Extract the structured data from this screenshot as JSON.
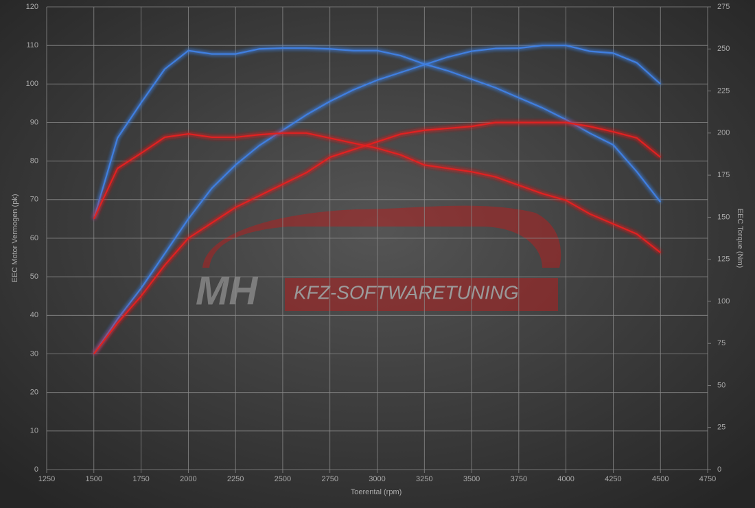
{
  "chart_data": {
    "type": "line",
    "xlabel": "Toerental (rpm)",
    "ylabel": "EEC Motor Vermogen (pk)",
    "y2label": "EEC Torque (Nm)",
    "annotations": [
      "MH",
      "KFZ-SOFTWARETUNING"
    ],
    "x": [
      1500,
      1625,
      1750,
      1875,
      2000,
      2125,
      2250,
      2375,
      2500,
      2625,
      2750,
      2875,
      3000,
      3125,
      3250,
      3375,
      3500,
      3625,
      3750,
      3875,
      4000,
      4125,
      4250,
      4375,
      4500
    ],
    "series": [
      {
        "color": "#3f7fe0",
        "values": [
          30,
          39,
          47,
          56,
          65,
          73,
          79,
          84,
          88,
          92,
          95.5,
          98.5,
          101,
          103,
          105,
          107,
          108.5,
          109.2,
          109.3,
          110,
          110,
          108.5,
          108,
          105.5,
          100
        ]
      },
      {
        "color": "#3f7fe0",
        "axis": "y2",
        "values": [
          149,
          197,
          218,
          238,
          249,
          247,
          247,
          250,
          250.5,
          250.5,
          250,
          249,
          249,
          246,
          241,
          237,
          232,
          227,
          221,
          215,
          208,
          200,
          193,
          177,
          159
        ]
      },
      {
        "color": "#e02020",
        "values": [
          30,
          38,
          45,
          53,
          60,
          64,
          68,
          71,
          74,
          77,
          81,
          83,
          85,
          87,
          88,
          88.5,
          89,
          90,
          90,
          90,
          90,
          89,
          87.6,
          86,
          81
        ]
      },
      {
        "color": "#e02020",
        "axis": "y2",
        "values": [
          149,
          179,
          188,
          197.5,
          199.5,
          197.5,
          197.5,
          199,
          200,
          200,
          197,
          194,
          191,
          187,
          181,
          179,
          177,
          174,
          169,
          164,
          160,
          152,
          146,
          140,
          129
        ]
      }
    ],
    "xlim": [
      1250,
      4750
    ],
    "xticks": [
      1250,
      1500,
      1750,
      2000,
      2250,
      2500,
      2750,
      3000,
      3250,
      3500,
      3750,
      4000,
      4250,
      4500,
      4750
    ],
    "ylim": [
      0,
      120
    ],
    "yticks": [
      0,
      10,
      20,
      30,
      40,
      50,
      60,
      70,
      80,
      90,
      100,
      110,
      120
    ],
    "y2lim": [
      0,
      275
    ],
    "y2ticks": [
      0,
      25,
      50,
      75,
      100,
      125,
      150,
      175,
      200,
      225,
      250,
      275
    ],
    "grid": true
  }
}
